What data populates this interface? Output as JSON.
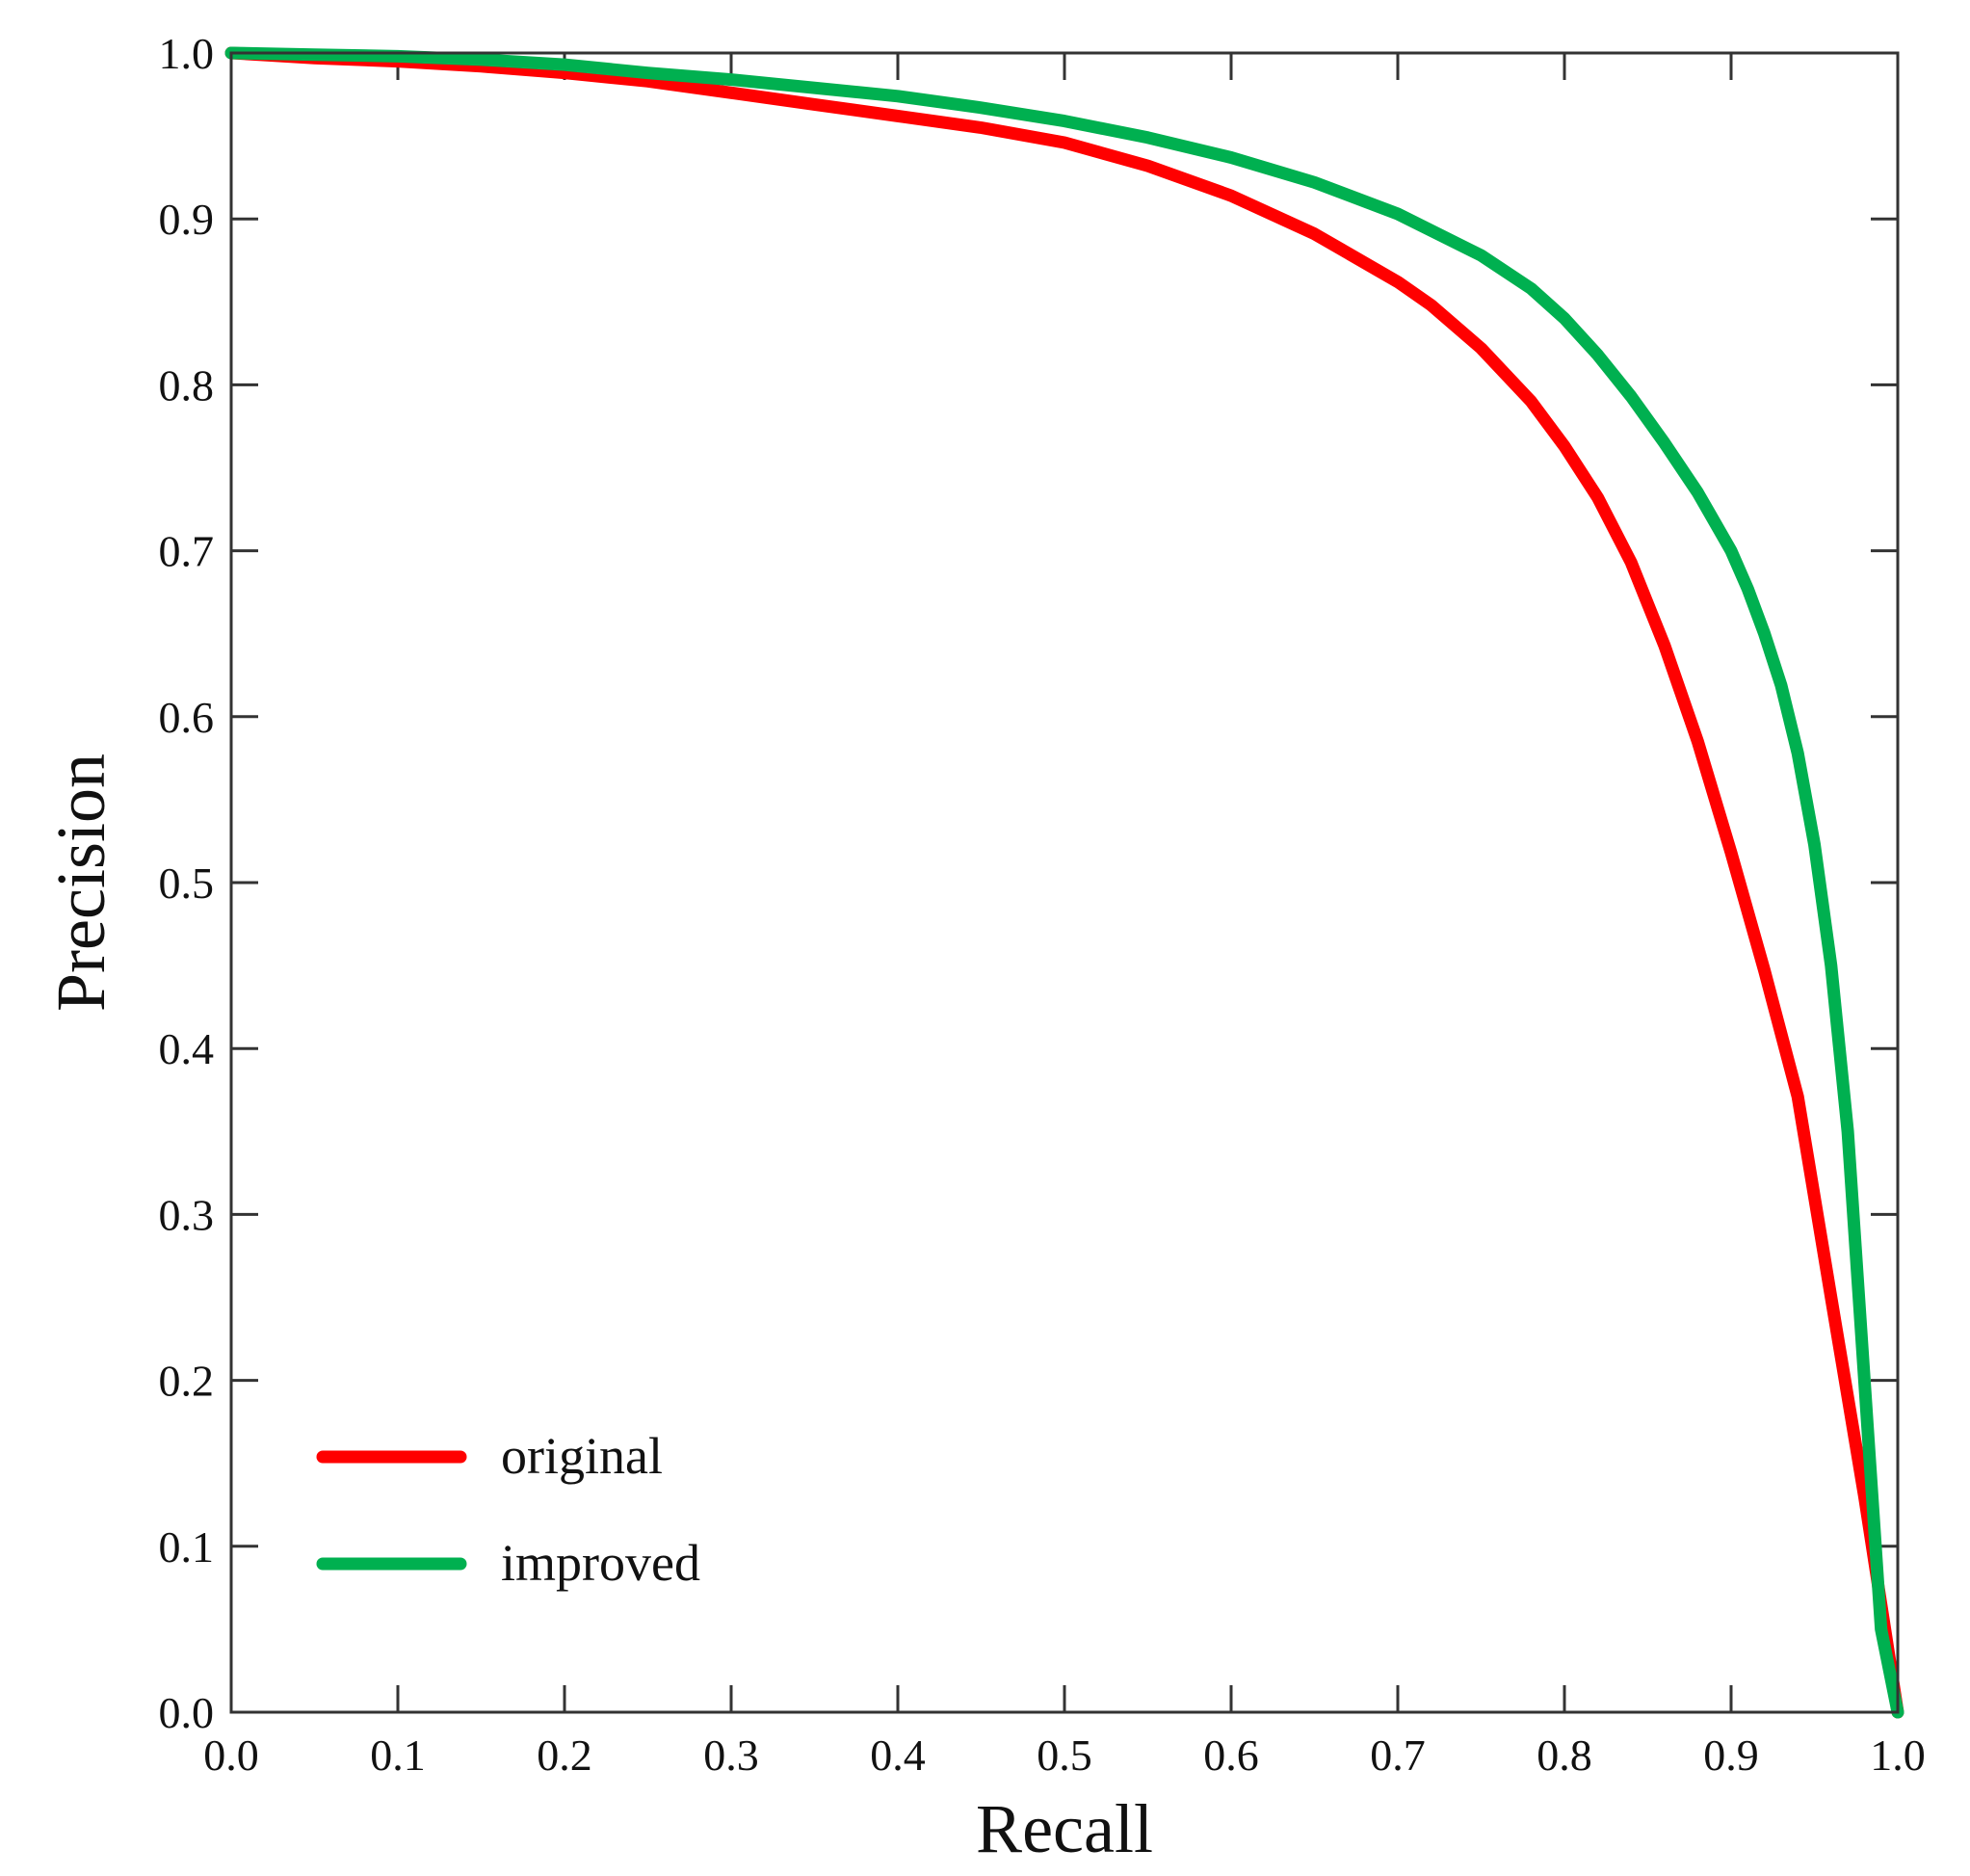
{
  "chart_data": {
    "type": "line",
    "title": "",
    "xlabel": "Recall",
    "ylabel": "Precision",
    "xlim": [
      0.0,
      1.0
    ],
    "ylim": [
      0.0,
      1.0
    ],
    "xticks": [
      "0.0",
      "0.1",
      "0.2",
      "0.3",
      "0.4",
      "0.5",
      "0.6",
      "0.7",
      "0.8",
      "0.9",
      "1.0"
    ],
    "yticks": [
      "0.0",
      "0.1",
      "0.2",
      "0.3",
      "0.4",
      "0.5",
      "0.6",
      "0.7",
      "0.8",
      "0.9",
      "1.0"
    ],
    "grid": false,
    "legend_position": "bottom-left",
    "series": [
      {
        "name": "original",
        "color": "#ff0000",
        "x": [
          0.0,
          0.05,
          0.1,
          0.15,
          0.2,
          0.25,
          0.3,
          0.35,
          0.4,
          0.45,
          0.5,
          0.55,
          0.6,
          0.65,
          0.7,
          0.72,
          0.75,
          0.78,
          0.8,
          0.82,
          0.84,
          0.86,
          0.88,
          0.9,
          0.92,
          0.94,
          0.96,
          0.98,
          1.0
        ],
        "y": [
          1.0,
          0.997,
          0.995,
          0.992,
          0.988,
          0.983,
          0.976,
          0.969,
          0.962,
          0.955,
          0.946,
          0.932,
          0.914,
          0.891,
          0.862,
          0.848,
          0.822,
          0.79,
          0.763,
          0.732,
          0.693,
          0.643,
          0.585,
          0.518,
          0.447,
          0.371,
          0.25,
          0.13,
          0.0
        ]
      },
      {
        "name": "improved",
        "color": "#00b050",
        "x": [
          0.0,
          0.05,
          0.1,
          0.15,
          0.2,
          0.25,
          0.3,
          0.35,
          0.4,
          0.45,
          0.5,
          0.55,
          0.6,
          0.65,
          0.7,
          0.75,
          0.78,
          0.8,
          0.82,
          0.84,
          0.86,
          0.88,
          0.9,
          0.91,
          0.92,
          0.93,
          0.94,
          0.95,
          0.96,
          0.97,
          0.98,
          0.99,
          1.0
        ],
        "y": [
          1.0,
          0.999,
          0.998,
          0.996,
          0.993,
          0.988,
          0.984,
          0.979,
          0.974,
          0.967,
          0.959,
          0.949,
          0.937,
          0.922,
          0.903,
          0.878,
          0.858,
          0.84,
          0.818,
          0.793,
          0.765,
          0.735,
          0.7,
          0.677,
          0.65,
          0.619,
          0.578,
          0.523,
          0.45,
          0.35,
          0.2,
          0.05,
          0.0
        ]
      }
    ]
  }
}
